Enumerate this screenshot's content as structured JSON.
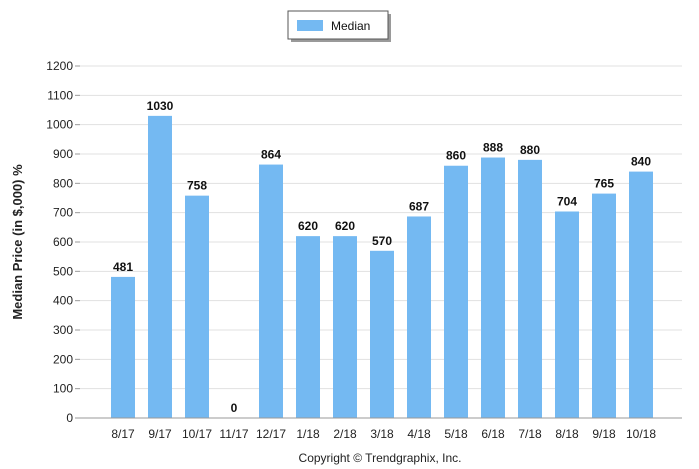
{
  "chart_data": {
    "type": "bar",
    "categories": [
      "8/17",
      "9/17",
      "10/17",
      "11/17",
      "12/17",
      "1/18",
      "2/18",
      "3/18",
      "4/18",
      "5/18",
      "6/18",
      "7/18",
      "8/18",
      "9/18",
      "10/18"
    ],
    "series": [
      {
        "name": "Median",
        "values": [
          481,
          1030,
          758,
          0,
          864,
          620,
          620,
          570,
          687,
          860,
          888,
          880,
          704,
          765,
          840
        ]
      }
    ],
    "ylabel": "Median Price (in $,000) %",
    "xlabel": "",
    "ylim": [
      0,
      1200
    ],
    "yticks": [
      0,
      100,
      200,
      300,
      400,
      500,
      600,
      700,
      800,
      900,
      1000,
      1100,
      1200
    ],
    "grid": true,
    "legend_position": "top-center",
    "bar_color": "#74b9f2"
  },
  "footer": {
    "copyright": "Copyright © Trendgraphix, Inc."
  }
}
